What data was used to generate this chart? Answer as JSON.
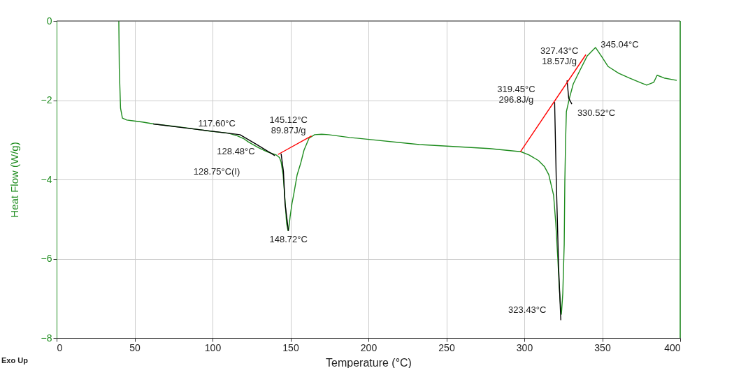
{
  "chart_data": {
    "type": "line",
    "xlabel": "Temperature (°C)",
    "ylabel": "Heat Flow (W/g)",
    "xlim": [
      0,
      400
    ],
    "xticks": [
      0,
      50,
      100,
      150,
      200,
      250,
      300,
      350,
      400
    ],
    "ylim": [
      -8,
      0
    ],
    "yticks": [
      -8,
      -6,
      -4,
      -2,
      0
    ],
    "grid": true,
    "legend": false,
    "marker": "none",
    "line_style": "solid",
    "series": [
      {
        "color": "#1e8c1e",
        "x": [
          39.9,
          40.2,
          41,
          42.2,
          45,
          48.9,
          55,
          62.3,
          80,
          98.2,
          110,
          116,
          120,
          122.9,
          126,
          129.6,
          135,
          140.8,
          143,
          144,
          145.3,
          146.6,
          147.5,
          148.4,
          148.9,
          149.8,
          151,
          152,
          154.3,
          156.5,
          158.7,
          161.9,
          165.5,
          170,
          174.4,
          187.9,
          232.7,
          277.6,
          297.8,
          303,
          309,
          313,
          315.7,
          318.8,
          320.2,
          321.5,
          322.4,
          323.3,
          323.8,
          324.7,
          325.6,
          326,
          326.5,
          327,
          329,
          331.4,
          335.9,
          340.4,
          343.9,
          345.7,
          349.3,
          353.8,
          360.5,
          367.3,
          374,
          378.5,
          383,
          385.2,
          389.7,
          397.8
        ],
        "values": [
          0,
          -1.2,
          -2.2,
          -2.45,
          -2.5,
          -2.52,
          -2.55,
          -2.6,
          -2.68,
          -2.78,
          -2.83,
          -2.9,
          -2.97,
          -3.05,
          -3.12,
          -3.2,
          -3.3,
          -3.38,
          -3.45,
          -3.56,
          -3.88,
          -4.58,
          -5.1,
          -5.29,
          -5.25,
          -4.93,
          -4.6,
          -4.4,
          -3.88,
          -3.6,
          -3.26,
          -2.96,
          -2.87,
          -2.86,
          -2.87,
          -2.94,
          -3.12,
          -3.22,
          -3.3,
          -3.38,
          -3.52,
          -3.68,
          -3.88,
          -4.4,
          -5.11,
          -6.0,
          -6.7,
          -7.22,
          -7.4,
          -6.87,
          -5.64,
          -4.05,
          -3.0,
          -2.29,
          -1.94,
          -1.59,
          -1.23,
          -0.88,
          -0.74,
          -0.67,
          -0.88,
          -1.15,
          -1.32,
          -1.44,
          -1.55,
          -1.62,
          -1.55,
          -1.37,
          -1.44,
          -1.5
        ]
      },
      {
        "color": "#000000",
        "x": [
          62,
          117.6,
          128.48,
          140
        ],
        "values": [
          -2.6,
          -2.87,
          -3.12,
          -3.4
        ]
      },
      {
        "color": "#000000",
        "x": [
          144,
          145.5,
          146.5,
          148.72
        ],
        "values": [
          -3.35,
          -3.8,
          -4.6,
          -5.3
        ]
      },
      {
        "color": "#000000",
        "x": [
          319.45,
          320.5,
          322,
          323.43
        ],
        "values": [
          -2.05,
          -4.0,
          -6.2,
          -7.55
        ]
      },
      {
        "color": "#000000",
        "x": [
          327.43,
          328.5,
          330.52
        ],
        "values": [
          -1.5,
          -1.95,
          -2.1
        ]
      },
      {
        "color": "#ff0000",
        "x": [
          142,
          163.5
        ],
        "values": [
          -3.37,
          -2.9
        ]
      },
      {
        "color": "#ff0000",
        "x": [
          297.5,
          339.5
        ],
        "values": [
          -3.3,
          -0.85
        ]
      }
    ],
    "annotations": [
      {
        "text": "117.60°C",
        "x": 117.6,
        "y": -2.87
      },
      {
        "text": "128.48°C",
        "x": 128.48,
        "y": -3.12
      },
      "128.75°C(I)",
      {
        "text": "145.12°C\n89.87J/g",
        "x": 145.12,
        "y": -3.3
      },
      {
        "text": "148.72°C",
        "x": 148.72,
        "y": -5.3
      },
      {
        "text": "319.45°C\n296.8J/g",
        "x": 319.45,
        "y": -2.05
      },
      {
        "text": "327.43°C\n18.57J/g",
        "x": 327.43,
        "y": -1.5
      },
      {
        "text": "345.04°C",
        "x": 345.04,
        "y": -0.67
      },
      {
        "text": "330.52°C",
        "x": 330.52,
        "y": -2.1
      },
      {
        "text": "323.43°C",
        "x": 323.43,
        "y": -7.55
      },
      "Exo Up"
    ]
  }
}
